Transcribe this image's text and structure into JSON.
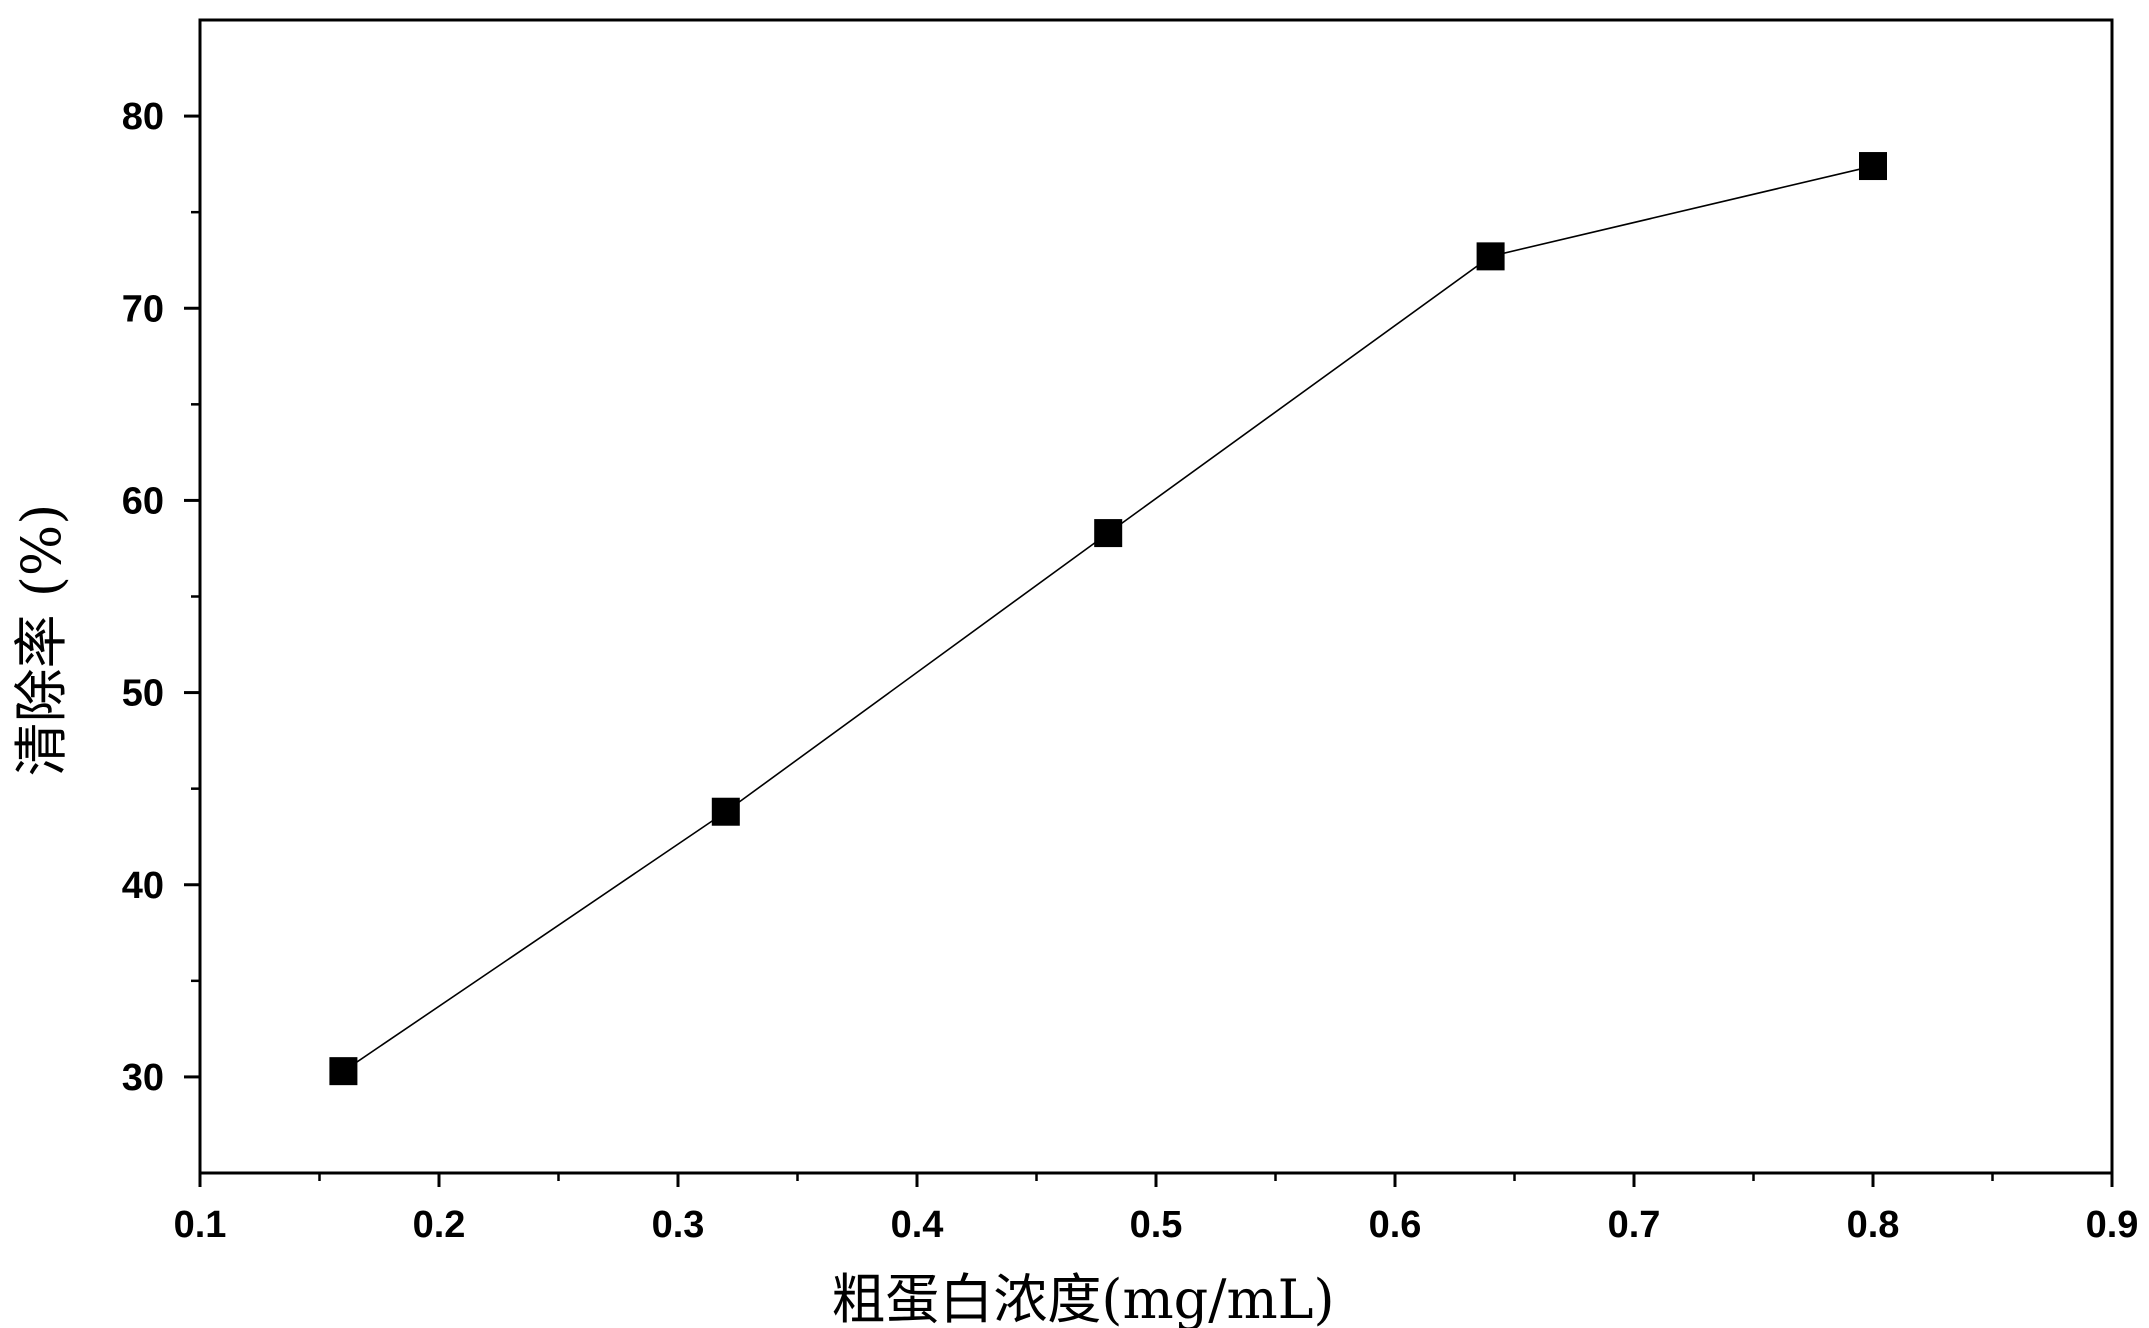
{
  "chart_data": {
    "type": "line",
    "title": "",
    "xlabel": "粗蛋白浓度(mg/mL)",
    "ylabel": "清除率 (%)",
    "xlim": [
      0.1,
      0.9
    ],
    "ylim": [
      25,
      85
    ],
    "x_ticks": [
      "0.1",
      "0.2",
      "0.3",
      "0.4",
      "0.5",
      "0.6",
      "0.7",
      "0.8",
      "0.9"
    ],
    "y_ticks": [
      "30",
      "40",
      "50",
      "60",
      "70",
      "80"
    ],
    "marker": "square",
    "grid": false,
    "legend": "none",
    "colors": {
      "line": "#000000",
      "marker": "#000000",
      "axis": "#000000"
    },
    "series": [
      {
        "x": [
          0.16,
          0.32,
          0.48,
          0.64,
          0.8
        ],
        "y": [
          30.3,
          43.8,
          58.3,
          72.7,
          77.4
        ]
      }
    ]
  }
}
